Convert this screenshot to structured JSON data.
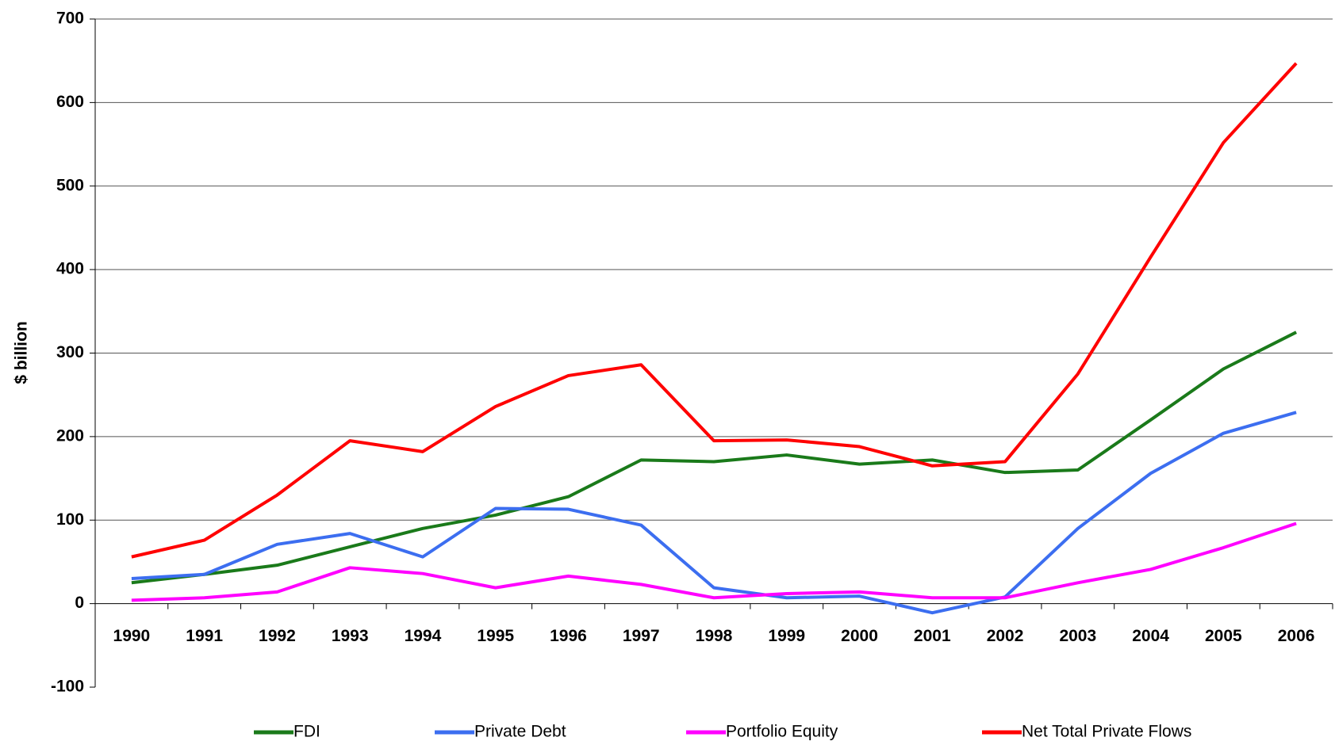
{
  "chart_data": {
    "type": "line",
    "y_label": "$ billion",
    "categories": [
      "1990",
      "1991",
      "1992",
      "1993",
      "1994",
      "1995",
      "1996",
      "1997",
      "1998",
      "1999",
      "2000",
      "2001",
      "2002",
      "2003",
      "2004",
      "2005",
      "2006"
    ],
    "series": [
      {
        "name": "FDI",
        "color": "#1a7a1a",
        "values": [
          25,
          35,
          46,
          68,
          90,
          106,
          128,
          172,
          170,
          178,
          167,
          172,
          157,
          160,
          220,
          281,
          325
        ]
      },
      {
        "name": "Private Debt",
        "color": "#3c6ef0",
        "values": [
          30,
          35,
          71,
          84,
          56,
          114,
          113,
          94,
          19,
          7,
          9,
          -11,
          8,
          90,
          156,
          204,
          229
        ]
      },
      {
        "name": "Portfolio Equity",
        "color": "#ff00ff",
        "values": [
          4,
          7,
          14,
          43,
          36,
          19,
          33,
          23,
          7,
          12,
          14,
          7,
          7,
          25,
          41,
          67,
          96
        ]
      },
      {
        "name": "Net Total Private Flows",
        "color": "#ff0000",
        "values": [
          56,
          76,
          130,
          195,
          182,
          236,
          273,
          286,
          195,
          196,
          188,
          165,
          170,
          275,
          415,
          552,
          647
        ]
      }
    ],
    "ylim": [
      -100,
      700
    ],
    "yticks": [
      -100,
      0,
      100,
      200,
      300,
      400,
      500,
      600,
      700
    ],
    "grid": true
  }
}
